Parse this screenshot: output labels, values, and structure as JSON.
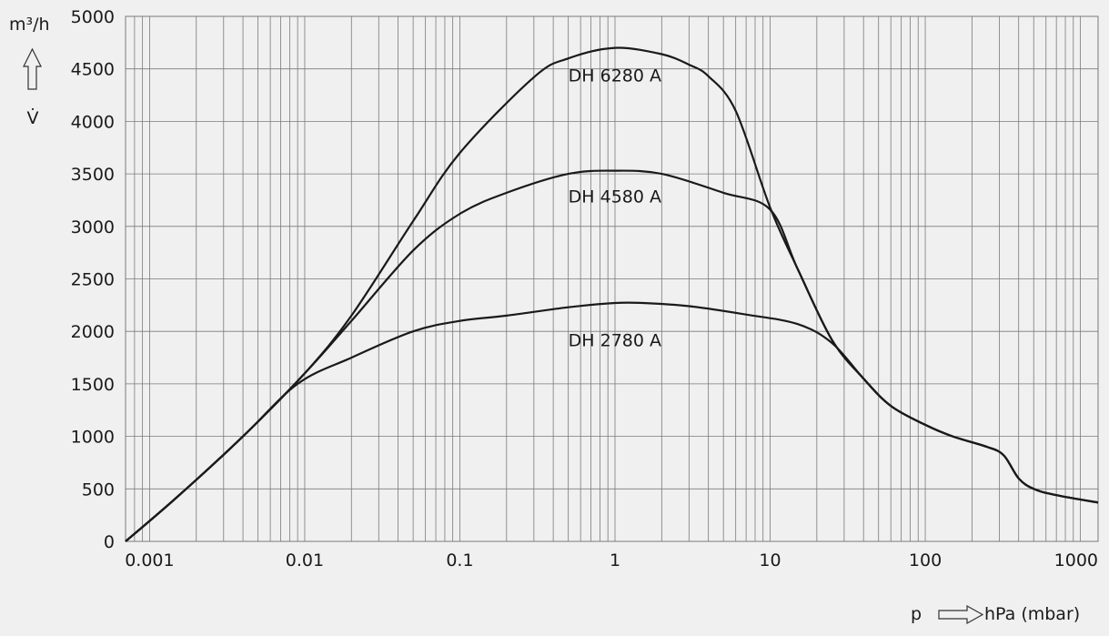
{
  "chart_data": {
    "type": "line",
    "x_scale": "log",
    "y_unit": "m³/h",
    "y_symbol": "V̇",
    "x_symbol": "p",
    "x_unit": "hPa (mbar)",
    "xlim": [
      0.0007,
      1300
    ],
    "ylim": [
      0,
      5000
    ],
    "grid": true,
    "x_tick_labels": [
      "0.001",
      "0.01",
      "0.1",
      "1",
      "10",
      "100",
      "1000"
    ],
    "x_tick_values": [
      0.001,
      0.01,
      0.1,
      1,
      10,
      100,
      1000
    ],
    "y_tick_labels": [
      "0",
      "500",
      "1000",
      "1500",
      "2000",
      "2500",
      "3000",
      "3500",
      "4000",
      "4500",
      "5000"
    ],
    "y_tick_values": [
      0,
      500,
      1000,
      1500,
      2000,
      2500,
      3000,
      3500,
      4000,
      4500,
      5000
    ],
    "line_color": "#1a1a1a",
    "grid_color": "#7a7a7a",
    "series": [
      {
        "name": "DH 6280 A",
        "label_at": [
          0.5,
          4380
        ],
        "points": [
          [
            0.0007,
            -50
          ],
          [
            0.0015,
            420
          ],
          [
            0.004,
            1000
          ],
          [
            0.01,
            1600
          ],
          [
            0.02,
            2150
          ],
          [
            0.05,
            3050
          ],
          [
            0.1,
            3700
          ],
          [
            0.3,
            4420
          ],
          [
            0.5,
            4600
          ],
          [
            1,
            4700
          ],
          [
            2,
            4640
          ],
          [
            3,
            4540
          ],
          [
            4,
            4430
          ],
          [
            6,
            4100
          ],
          [
            10,
            3180
          ],
          [
            15,
            2600
          ],
          [
            25,
            1920
          ],
          [
            40,
            1550
          ],
          [
            60,
            1290
          ],
          [
            100,
            1110
          ],
          [
            150,
            1000
          ],
          [
            250,
            900
          ],
          [
            320,
            820
          ],
          [
            400,
            600
          ],
          [
            500,
            500
          ],
          [
            700,
            440
          ],
          [
            1300,
            370
          ]
        ]
      },
      {
        "name": "DH 4580 A",
        "label_at": [
          0.5,
          3230
        ],
        "points": [
          [
            0.0007,
            -50
          ],
          [
            0.0015,
            420
          ],
          [
            0.004,
            1000
          ],
          [
            0.01,
            1600
          ],
          [
            0.02,
            2100
          ],
          [
            0.05,
            2770
          ],
          [
            0.1,
            3120
          ],
          [
            0.2,
            3320
          ],
          [
            0.5,
            3500
          ],
          [
            1,
            3530
          ],
          [
            2,
            3500
          ],
          [
            5,
            3320
          ],
          [
            10,
            3160
          ],
          [
            15,
            2600
          ],
          [
            25,
            1920
          ],
          [
            40,
            1550
          ],
          [
            60,
            1290
          ],
          [
            100,
            1110
          ],
          [
            150,
            1000
          ],
          [
            250,
            900
          ],
          [
            320,
            820
          ],
          [
            400,
            600
          ],
          [
            500,
            500
          ],
          [
            700,
            440
          ],
          [
            1300,
            370
          ]
        ]
      },
      {
        "name": "DH 2780 A",
        "label_at": [
          0.5,
          1860
        ],
        "points": [
          [
            0.0007,
            -50
          ],
          [
            0.0015,
            420
          ],
          [
            0.004,
            1000
          ],
          [
            0.009,
            1500
          ],
          [
            0.02,
            1750
          ],
          [
            0.05,
            2000
          ],
          [
            0.1,
            2100
          ],
          [
            0.2,
            2150
          ],
          [
            0.5,
            2230
          ],
          [
            1,
            2270
          ],
          [
            1.5,
            2270
          ],
          [
            3,
            2240
          ],
          [
            7,
            2160
          ],
          [
            15,
            2070
          ],
          [
            25,
            1890
          ],
          [
            40,
            1550
          ],
          [
            60,
            1290
          ],
          [
            100,
            1110
          ],
          [
            150,
            1000
          ],
          [
            250,
            900
          ],
          [
            320,
            820
          ],
          [
            400,
            600
          ],
          [
            500,
            500
          ],
          [
            700,
            440
          ],
          [
            1300,
            370
          ]
        ]
      }
    ]
  }
}
